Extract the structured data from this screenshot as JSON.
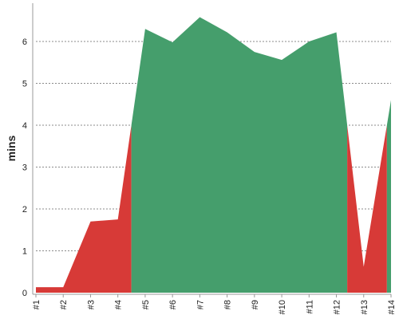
{
  "chart_data": {
    "type": "area",
    "title": "",
    "xlabel": "",
    "ylabel": "mins",
    "threshold": 4,
    "categories": [
      "#1",
      "#2",
      "#3",
      "#4",
      "#5",
      "#6",
      "#7",
      "#8",
      "#9",
      "#10",
      "#11",
      "#12",
      "#13",
      "#14"
    ],
    "values": [
      0.13,
      0.13,
      1.7,
      1.75,
      6.3,
      5.98,
      6.58,
      6.22,
      5.75,
      5.56,
      6.0,
      6.22,
      0.62,
      4.6
    ],
    "ylim": [
      0,
      7
    ],
    "yticks": [
      0,
      1,
      2,
      3,
      4,
      5,
      6
    ],
    "grid": true,
    "colors": {
      "below_threshold": "#d73a37",
      "above_threshold": "#459e6c",
      "grid": "#666666",
      "axis": "#999999",
      "text": "#222222"
    }
  }
}
